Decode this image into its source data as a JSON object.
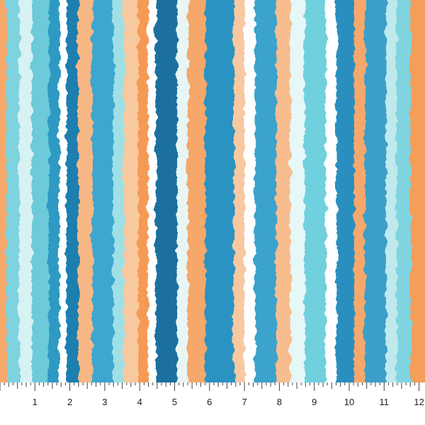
{
  "ruler": {
    "labels": [
      "1",
      "2",
      "3",
      "4",
      "5",
      "6",
      "7",
      "8",
      "9",
      "10",
      "11",
      "12"
    ]
  }
}
